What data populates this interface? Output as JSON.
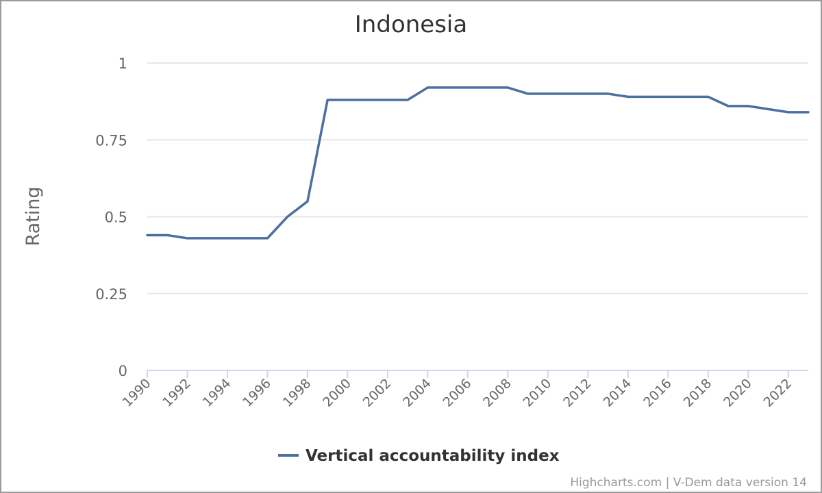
{
  "chart_data": {
    "type": "line",
    "title": "Indonesia",
    "ylabel": "Rating",
    "xlabel": "",
    "ylim": [
      0,
      1
    ],
    "xlim": [
      1990,
      2023
    ],
    "yticks": [
      0,
      0.25,
      0.5,
      0.75,
      1
    ],
    "yticklabels": [
      "0",
      "0.25",
      "0.5",
      "0.75",
      "1"
    ],
    "xticks": [
      1990,
      1992,
      1994,
      1996,
      1998,
      2000,
      2002,
      2004,
      2006,
      2008,
      2010,
      2012,
      2014,
      2016,
      2018,
      2020,
      2022
    ],
    "grid": true,
    "legend_position": "bottom-center",
    "series": [
      {
        "name": "Vertical accountability index",
        "color": "#4a6fa0",
        "x": [
          1990,
          1991,
          1992,
          1993,
          1994,
          1995,
          1996,
          1997,
          1998,
          1999,
          2000,
          2001,
          2002,
          2003,
          2004,
          2005,
          2006,
          2007,
          2008,
          2009,
          2010,
          2011,
          2012,
          2013,
          2014,
          2015,
          2016,
          2017,
          2018,
          2019,
          2020,
          2021,
          2022,
          2023
        ],
        "y": [
          0.44,
          0.44,
          0.43,
          0.43,
          0.43,
          0.43,
          0.43,
          0.5,
          0.55,
          0.88,
          0.88,
          0.88,
          0.88,
          0.88,
          0.92,
          0.92,
          0.92,
          0.92,
          0.92,
          0.9,
          0.9,
          0.9,
          0.9,
          0.9,
          0.89,
          0.89,
          0.89,
          0.89,
          0.89,
          0.86,
          0.86,
          0.85,
          0.84,
          0.84
        ]
      }
    ]
  },
  "credits": "Highcharts.com | V-Dem data version 14"
}
